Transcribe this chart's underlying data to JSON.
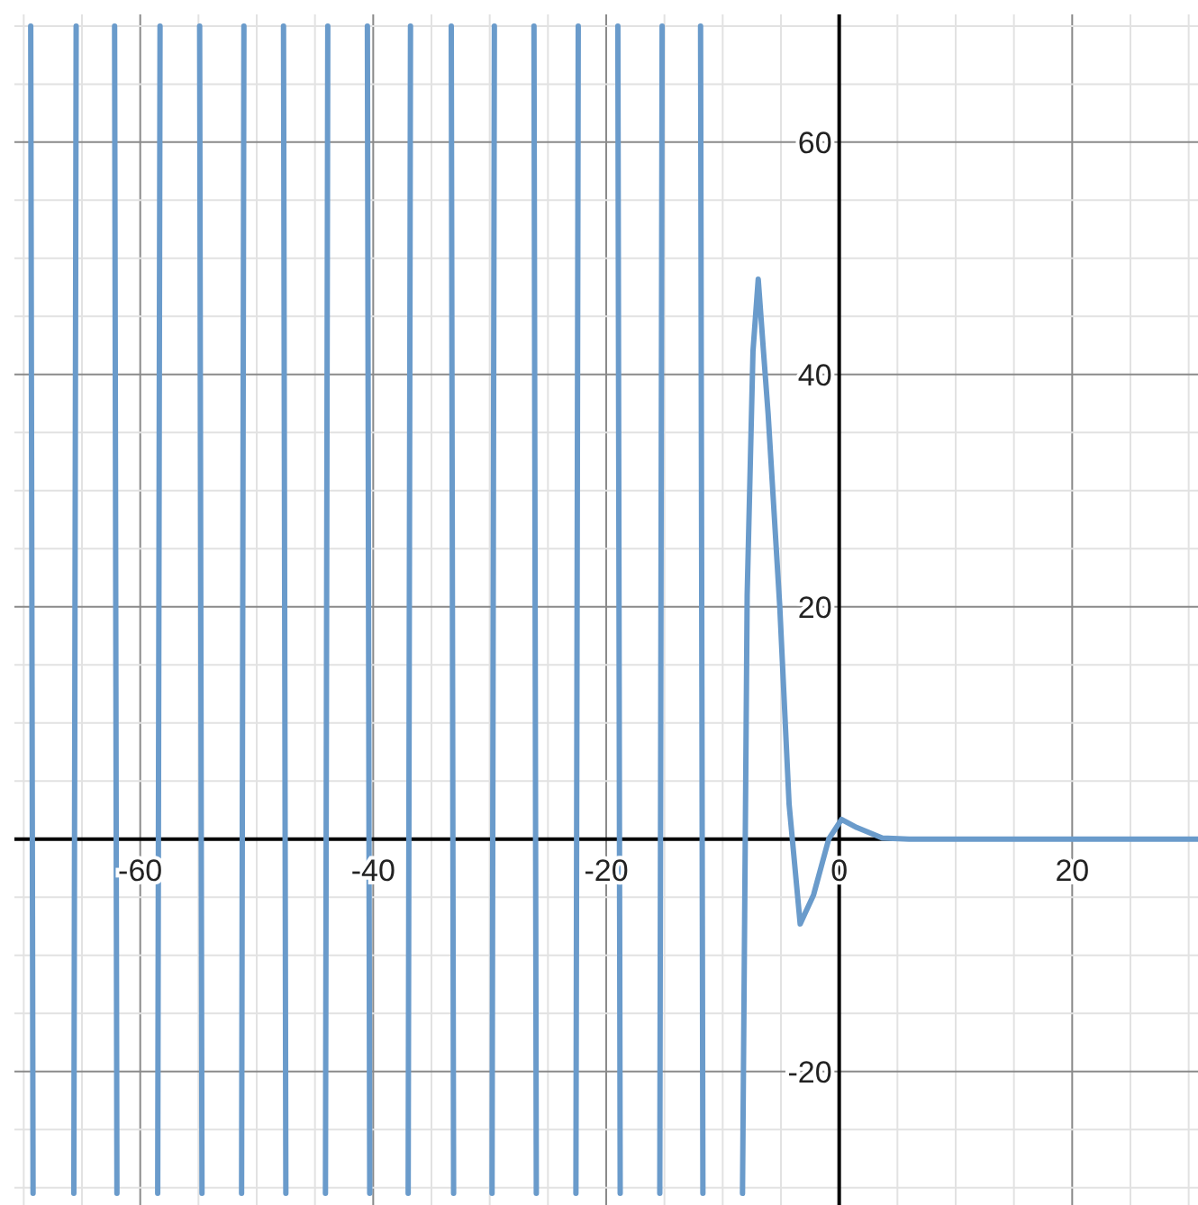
{
  "chart_data": {
    "type": "line",
    "xlim": [
      -70.8,
      30.8
    ],
    "ylim": [
      -31.5,
      71
    ],
    "xticks": [
      {
        "value": -70,
        "label": null
      },
      {
        "value": -65,
        "label": null
      },
      -60,
      {
        "value": -55,
        "label": null
      },
      {
        "value": -50,
        "label": null
      },
      {
        "value": -45,
        "label": null
      },
      -40,
      {
        "value": -35,
        "label": null
      },
      {
        "value": -30,
        "label": null
      },
      {
        "value": -25,
        "label": null
      },
      -20,
      {
        "value": -15,
        "label": null
      },
      {
        "value": -10,
        "label": null
      },
      {
        "value": -5,
        "label": null
      },
      0,
      {
        "value": 5,
        "label": null
      },
      {
        "value": 10,
        "label": null
      },
      {
        "value": 15,
        "label": null
      },
      20,
      {
        "value": 25,
        "label": null
      },
      {
        "value": 30,
        "label": null
      }
    ],
    "yticks": [
      {
        "value": -30,
        "label": null
      },
      {
        "value": -25,
        "label": null
      },
      -20,
      {
        "value": -15,
        "label": null
      },
      {
        "value": -10,
        "label": null
      },
      {
        "value": -5,
        "label": null
      },
      {
        "value": 0,
        "label": null
      },
      {
        "value": 5,
        "label": null
      },
      {
        "value": 10,
        "label": null
      },
      {
        "value": 15,
        "label": null
      },
      20,
      {
        "value": 25,
        "label": null
      },
      {
        "value": 30,
        "label": null
      },
      {
        "value": 35,
        "label": null
      },
      40,
      {
        "value": 45,
        "label": null
      },
      {
        "value": 50,
        "label": null
      },
      {
        "value": 55,
        "label": null
      },
      60,
      {
        "value": 65,
        "label": null
      },
      {
        "value": 70,
        "label": null
      }
    ],
    "grid": true,
    "marker": "none",
    "line_style": "solid",
    "series": [
      {
        "color": "#6a9bcb",
        "x": [
          -69.4,
          -69.2,
          -67.5,
          -65.7,
          -65.5,
          -63.8,
          -62.2,
          -62.0,
          -60.2,
          -58.5,
          -58.3,
          -56.6,
          -54.9,
          -54.7,
          -53.0,
          -51.3,
          -51.1,
          -49.4,
          -47.7,
          -47.5,
          -45.8,
          -44.1,
          -43.9,
          -42.2,
          -40.5,
          -40.3,
          -38.6,
          -37.0,
          -36.8,
          -35.0,
          -33.3,
          -33.1,
          -31.4,
          -29.8,
          -29.6,
          -27.9,
          -26.2,
          -26.0,
          -24.3,
          -22.6,
          -22.4,
          -20.7,
          -19.0,
          -18.8,
          -17.1,
          -15.4,
          -15.2,
          -13.5,
          -11.9,
          -11.7,
          -10.0,
          -8.3,
          -7.9,
          -7.4,
          -6.95,
          -6.5,
          -6.1,
          -5.1,
          -4.3,
          -3.35,
          -2.2,
          -0.9,
          0.2,
          1.5,
          3.7,
          6,
          10,
          20,
          30.8
        ],
        "values": [
          70,
          -30.5,
          null,
          -30.5,
          70,
          null,
          70,
          -30.5,
          null,
          -30.5,
          70,
          null,
          70,
          -30.5,
          null,
          -30.5,
          70,
          null,
          70,
          -30.5,
          null,
          -30.5,
          70,
          null,
          70,
          -30.5,
          null,
          -30.5,
          70,
          null,
          70,
          -30.5,
          null,
          -30.5,
          70,
          null,
          70,
          -30.5,
          null,
          -30.5,
          70,
          null,
          70,
          -30.5,
          null,
          -30.5,
          70,
          null,
          70,
          -30.5,
          null,
          -30.5,
          21,
          42,
          48.2,
          42,
          36.6,
          20,
          3,
          -7.3,
          -4.8,
          0,
          1.7,
          1,
          0.1,
          0,
          0,
          0,
          0
        ]
      }
    ]
  }
}
